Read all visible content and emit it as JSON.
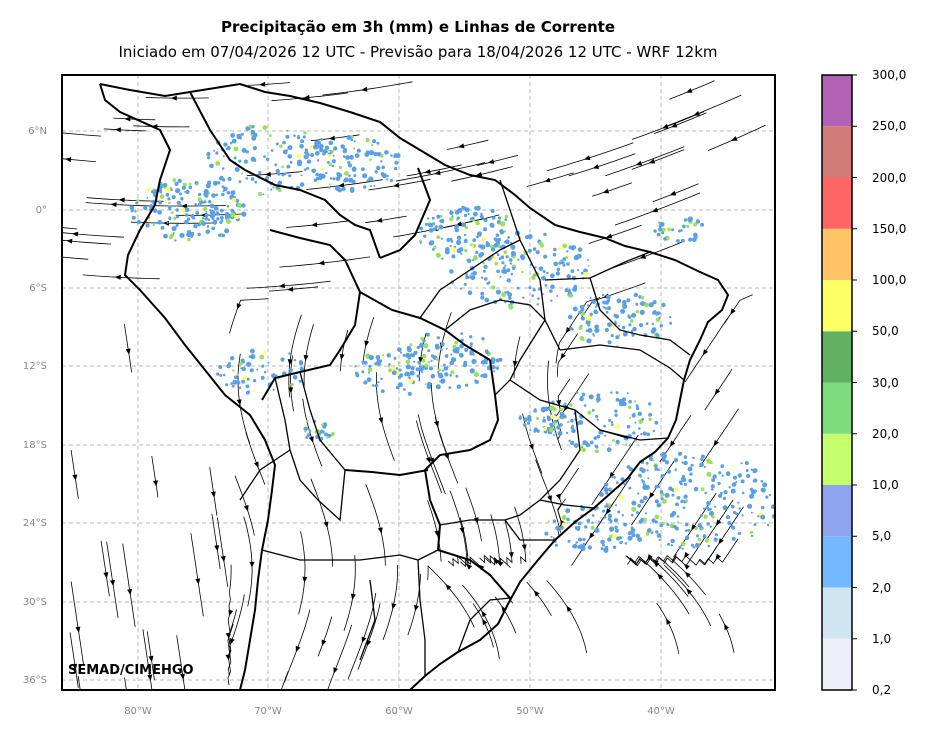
{
  "title": "Precipitação em 3h (mm) e Linhas de Corrente",
  "subtitle": "Iniciado em 07/04/2026 12 UTC - Previsão para 18/04/2026 12 UTC - WRF 12km",
  "watermark": "SEMAD/CIMEHGO",
  "map": {
    "lon_ticks": [
      "80°W",
      "70°W",
      "60°W",
      "50°W",
      "40°W"
    ],
    "lat_ticks": [
      "6°N",
      "0°",
      "6°S",
      "12°S",
      "18°S",
      "24°S",
      "30°S",
      "36°S"
    ],
    "grid": "dashed",
    "features": [
      "country-borders",
      "state-borders",
      "streamlines",
      "precipitation-shading"
    ]
  },
  "colorbar": {
    "levels": [
      "0,2",
      "1,0",
      "2,0",
      "5,0",
      "10,0",
      "20,0",
      "30,0",
      "50,0",
      "100,0",
      "150,0",
      "200,0",
      "250,0",
      "300,0"
    ],
    "colors": [
      "#eeeefa",
      "#cfe6f0",
      "#74b9ff",
      "#8ea4ee",
      "#c6ff6e",
      "#7edc7e",
      "#62b162",
      "#ffff66",
      "#ffc466",
      "#ff6666",
      "#d27b78",
      "#b162b5"
    ]
  },
  "precip_colors": {
    "light": "#5aa0e6",
    "moderate": "#9ae05a",
    "heavy": "#ffff66"
  }
}
